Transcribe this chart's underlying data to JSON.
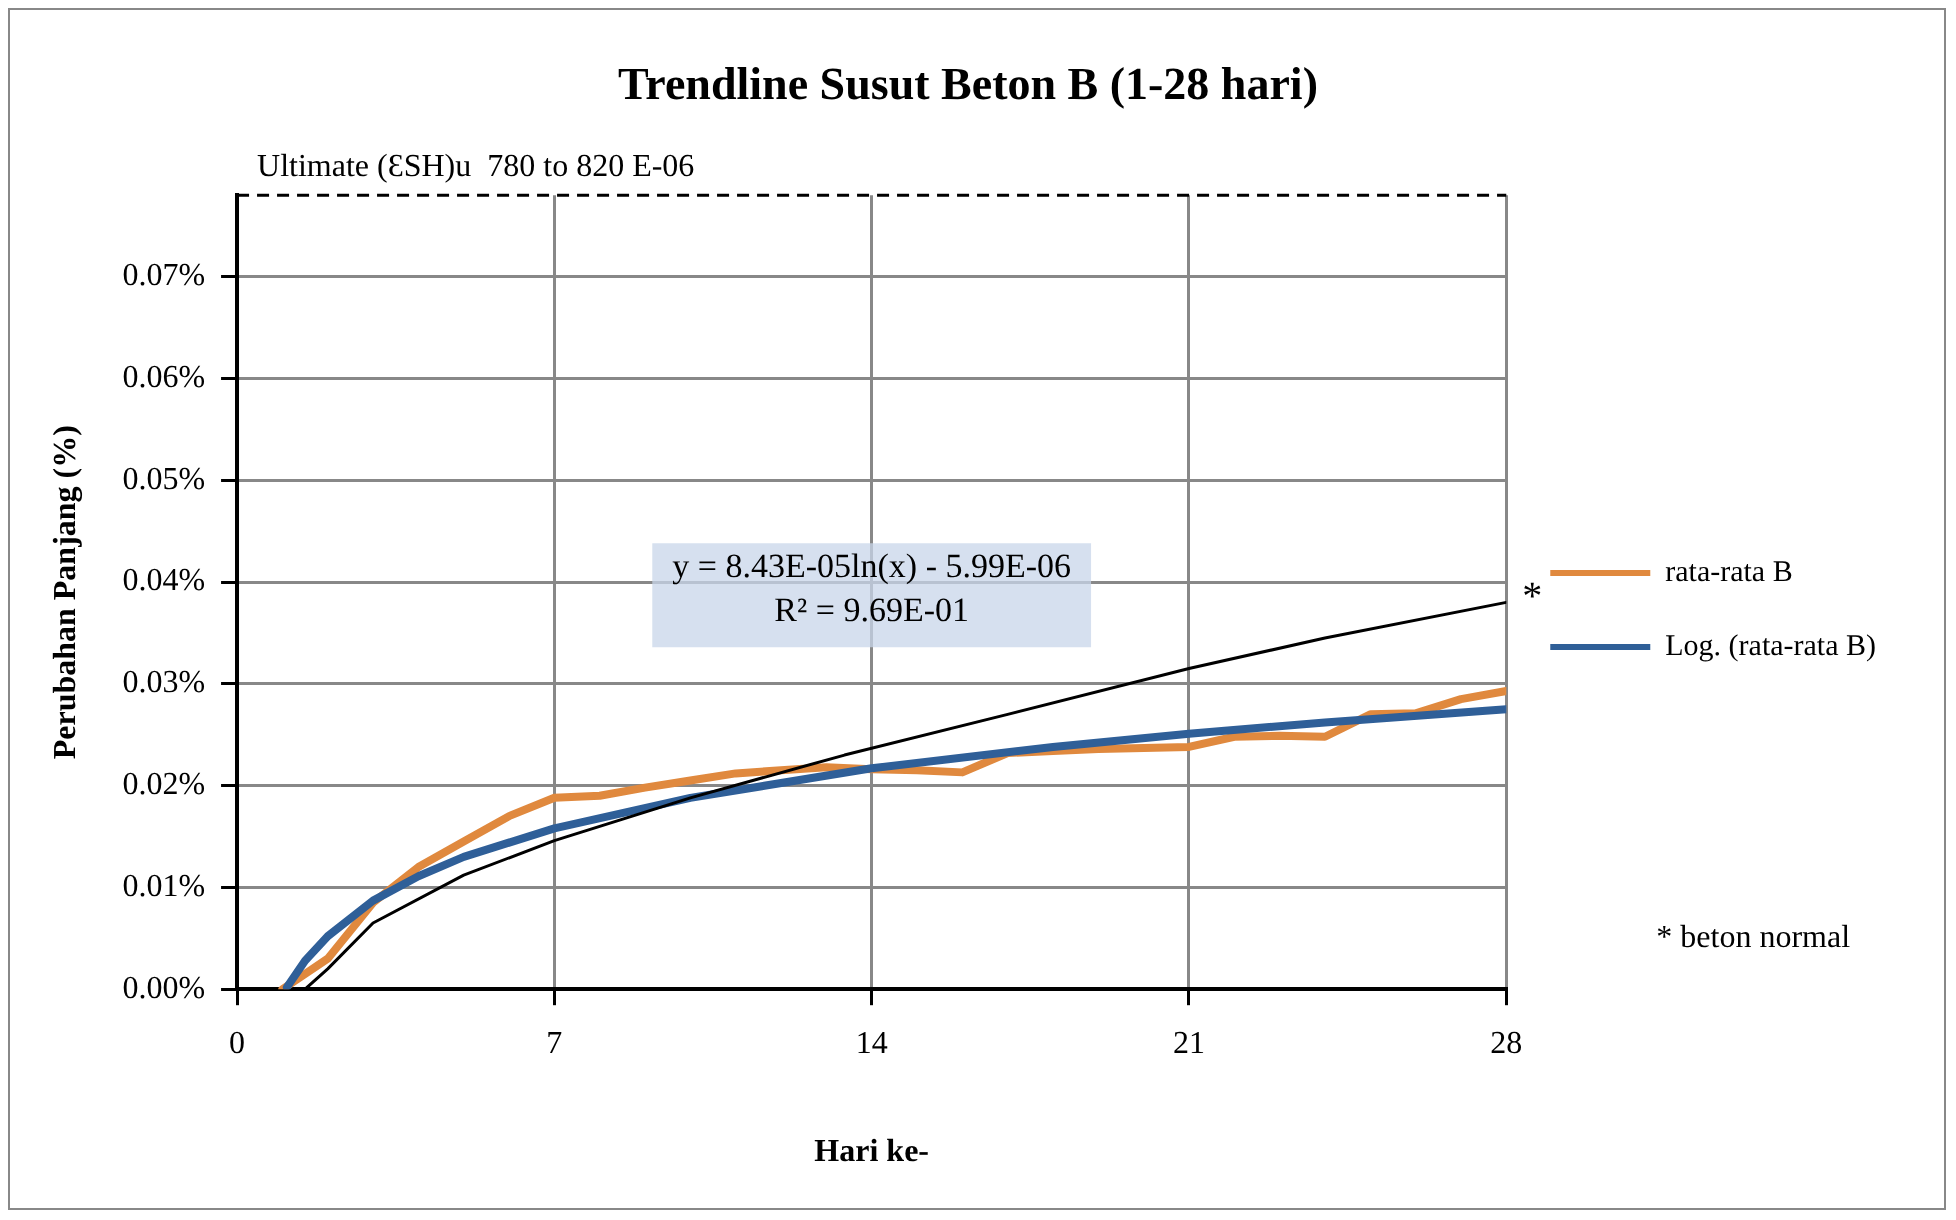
{
  "chart_data": {
    "type": "line",
    "title": "Trendline Susut Beton B (1-28 hari)",
    "xlabel": "Hari ke-",
    "ylabel": "Perubahan Panjang (%)",
    "xlim": [
      0,
      28
    ],
    "xticks": [
      0,
      7,
      14,
      21,
      28
    ],
    "ylim": [
      0,
      0.078
    ],
    "yticks": [
      {
        "value": 0,
        "label": "0.00%"
      },
      {
        "value": 0.01,
        "label": "0.01%"
      },
      {
        "value": 0.02,
        "label": "0.02%"
      },
      {
        "value": 0.03,
        "label": "0.03%"
      },
      {
        "value": 0.04,
        "label": "0.04%"
      },
      {
        "value": 0.05,
        "label": "0.05%"
      },
      {
        "value": 0.06,
        "label": "0.06%"
      },
      {
        "value": 0.07,
        "label": "0.07%"
      }
    ],
    "grid": true,
    "legend": "right",
    "marker": "none",
    "ref_lines": [
      {
        "axis": "y",
        "value": 0.078,
        "label": "Ultimate (ƐSH)u  780 to 820 E-06",
        "color": "#000000",
        "line_style": "dashed"
      }
    ],
    "series": [
      {
        "name": "rata-rata B",
        "color": "#e0893e",
        "x": [
          1,
          2,
          3,
          4,
          5,
          6,
          7,
          8,
          9,
          10,
          11,
          12,
          13,
          14,
          15,
          16,
          17,
          18,
          19,
          20,
          21,
          22,
          23,
          24,
          25,
          26,
          27,
          28
        ],
        "values": [
          0,
          0.003,
          0.0085,
          0.012,
          0.0145,
          0.017,
          0.0188,
          0.019,
          0.0198,
          0.0205,
          0.0212,
          0.0215,
          0.0218,
          0.0216,
          0.0215,
          0.0213,
          0.0232,
          0.0234,
          0.0236,
          0.0237,
          0.0238,
          0.0248,
          0.0249,
          0.0248,
          0.027,
          0.0271,
          0.0285,
          0.0293
        ]
      },
      {
        "name": "Log. (rata-rata B)",
        "color": "#2f5f98",
        "x": [
          1.1,
          1.5,
          2,
          3,
          4,
          5,
          7,
          10,
          14,
          18,
          21,
          24,
          28
        ],
        "values": [
          0.0002,
          0.0028,
          0.0052,
          0.0087,
          0.0111,
          0.013,
          0.0158,
          0.0188,
          0.0217,
          0.0238,
          0.0251,
          0.0262,
          0.0275
        ]
      },
      {
        "color": "#000000",
        "x": [
          1.5,
          2,
          3,
          5,
          7,
          10,
          13.4,
          17,
          21,
          24,
          28
        ],
        "values": [
          0,
          0.002,
          0.0065,
          0.0112,
          0.0146,
          0.0188,
          0.023,
          0.027,
          0.0315,
          0.0345,
          0.038
        ]
      }
    ],
    "annotations": [
      "y = 8.43E-05ln(x) - 5.99E-06",
      "R² = 9.69E-01",
      {
        "text": "*",
        "x": 28,
        "y": 0.038
      },
      "* beton normal"
    ]
  }
}
